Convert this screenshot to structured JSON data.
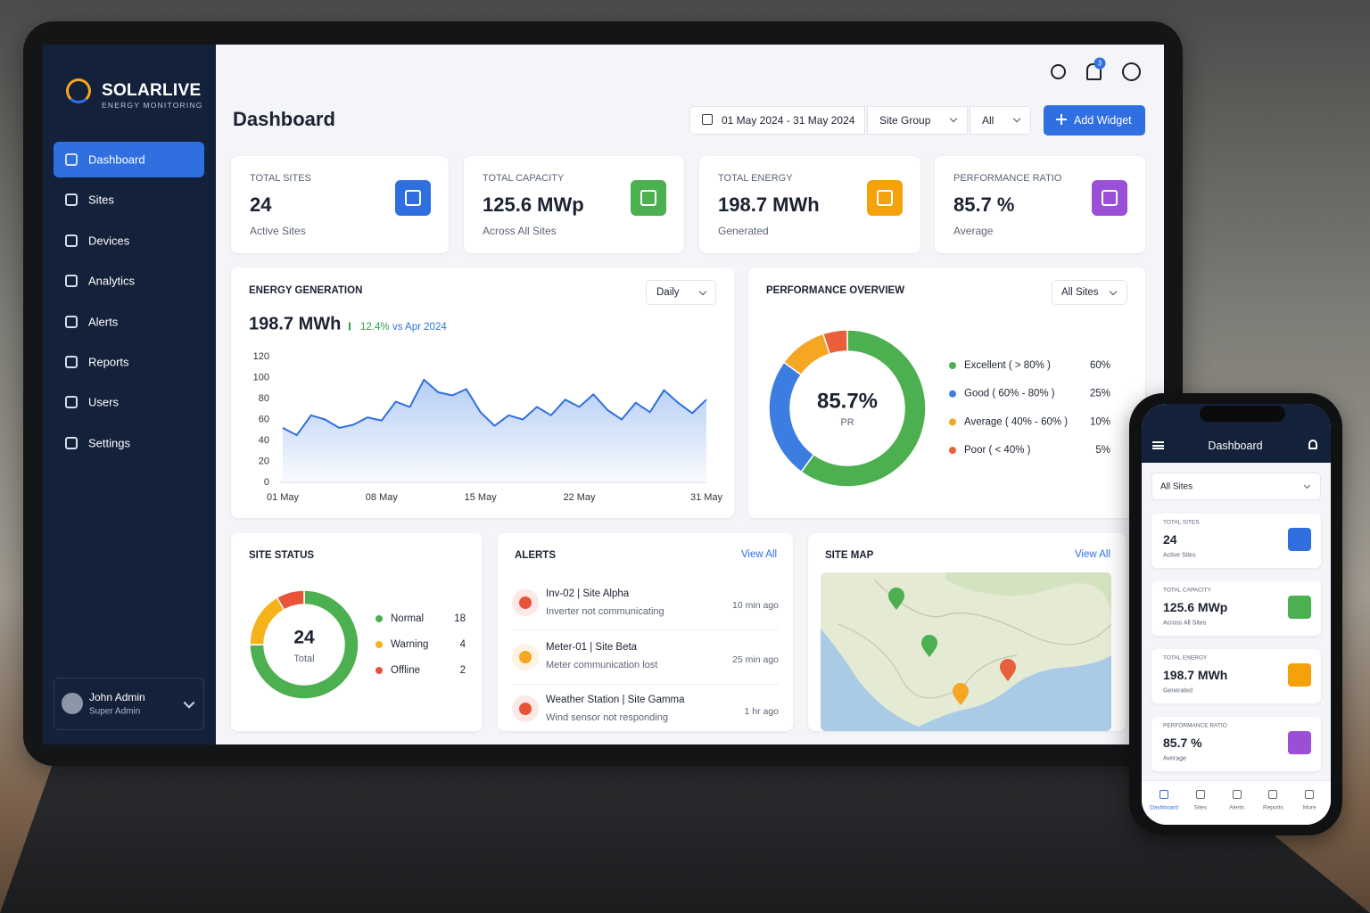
{
  "brand": {
    "name": "SOLARLIVE",
    "tagline": "ENERGY MONITORING"
  },
  "nav": [
    "Dashboard",
    "Sites",
    "Devices",
    "Analytics",
    "Alerts",
    "Reports",
    "Users",
    "Settings"
  ],
  "user": {
    "name": "John Admin",
    "role": "Super Admin"
  },
  "header": {
    "title": "Dashboard",
    "date_range": "01 May 2024 - 31 May 2024",
    "site_group": "Site Group",
    "filter": "All",
    "add_widget": "Add Widget",
    "notifications": 3
  },
  "kpis": [
    {
      "label": "TOTAL SITES",
      "value": "24",
      "sub": "Active Sites",
      "color": "#2f6fe0"
    },
    {
      "label": "TOTAL CAPACITY",
      "value": "125.6 MWp",
      "sub": "Across All Sites",
      "color": "#4caf50"
    },
    {
      "label": "TOTAL ENERGY",
      "value": "198.7 MWh",
      "sub": "Generated",
      "color": "#f5a10a"
    },
    {
      "label": "PERFORMANCE RATIO",
      "value": "85.7 %",
      "sub": "Average",
      "color": "#9b4fd6"
    }
  ],
  "chart_data": [
    {
      "type": "line",
      "title": "ENERGY GENERATION",
      "period": "Daily",
      "total": "198.7 MWh",
      "change": "12.4%",
      "change_note": "vs Apr 2024",
      "categories": [
        "01 May",
        null,
        null,
        null,
        null,
        null,
        null,
        "08 May",
        null,
        null,
        null,
        null,
        null,
        null,
        "15 May",
        null,
        null,
        null,
        null,
        null,
        null,
        "22 May",
        null,
        null,
        null,
        null,
        null,
        null,
        null,
        null,
        "31 May"
      ],
      "series": [
        {
          "color": "#2f6fe0",
          "values": [
            52,
            45,
            64,
            60,
            52,
            55,
            62,
            59,
            77,
            72,
            98,
            86,
            83,
            89,
            67,
            54,
            64,
            60,
            72,
            64,
            79,
            72,
            84,
            69,
            60,
            76,
            67,
            88,
            76,
            66,
            79
          ]
        }
      ],
      "ylim": [
        0,
        120
      ],
      "yticks": [
        0,
        20,
        40,
        60,
        80,
        100,
        120
      ],
      "grid": false
    },
    {
      "type": "donut",
      "title": "PERFORMANCE OVERVIEW",
      "filter": "All Sites",
      "center_value": "85.7%",
      "center_label": "PR",
      "categories": [
        "Excellent ( > 80% )",
        "Good ( 60% - 80% )",
        "Average ( 40% - 60% )",
        "Poor ( < 40% )"
      ],
      "values": [
        60,
        25,
        10,
        5
      ],
      "value_labels": [
        "60%",
        "25%",
        "10%",
        "5%"
      ],
      "colors": [
        "#4caf50",
        "#3b7de0",
        "#f5a623",
        "#e8603a"
      ]
    },
    {
      "type": "donut",
      "title": "SITE STATUS",
      "center_value": "24",
      "center_label": "Total",
      "categories": [
        "Normal",
        "Warning",
        "Offline"
      ],
      "values": [
        18,
        4,
        2
      ],
      "colors": [
        "#4caf50",
        "#f5b21a",
        "#e8543a"
      ]
    }
  ],
  "alerts": {
    "title": "ALERTS",
    "view_all": "View All",
    "items": [
      {
        "title": "Inv-02 | Site Alpha",
        "message": "Inverter not communicating",
        "time": "10 min ago",
        "color": "#e8543a"
      },
      {
        "title": "Meter-01 | Site Beta",
        "message": "Meter communication lost",
        "time": "25 min ago",
        "color": "#f5a623"
      },
      {
        "title": "Weather Station | Site Gamma",
        "message": "Wind sensor not responding",
        "time": "1 hr ago",
        "color": "#e8543a"
      }
    ]
  },
  "site_map": {
    "title": "SITE MAP",
    "view_all": "View All"
  },
  "mobile": {
    "title": "Dashboard",
    "filter": "All Sites",
    "tabs": [
      "Dashboard",
      "Sites",
      "Alerts",
      "Reports",
      "More"
    ]
  }
}
